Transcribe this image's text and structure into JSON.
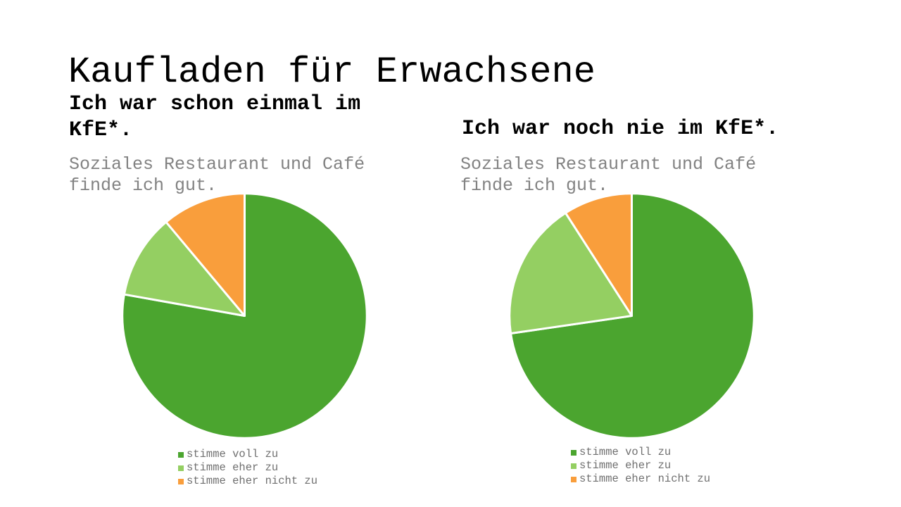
{
  "slide": {
    "title": "Kaufladen für Erwachsene",
    "background_color": "#ffffff"
  },
  "chart_data": [
    {
      "type": "pie",
      "title": "Ich war schon einmal im KfE*.",
      "subtitle": "Soziales Restaurant und Café finde ich gut.",
      "labels": [
        "stimme voll zu",
        "stimme eher zu",
        "stimme eher nicht zu"
      ],
      "values_percent": [
        77.8,
        11.1,
        11.1
      ],
      "colors": [
        "#4ba52f",
        "#94cf62",
        "#f99e3c"
      ],
      "start_angle_deg": 0,
      "direction": "clockwise",
      "slice_border_color": "#ffffff",
      "legend_position": "bottom"
    },
    {
      "type": "pie",
      "title": "Ich war noch nie im KfE*.",
      "subtitle": "Soziales Restaurant und Café finde ich gut.",
      "labels": [
        "stimme voll zu",
        "stimme eher zu",
        "stimme eher nicht zu"
      ],
      "values_percent": [
        72.7,
        18.2,
        9.1
      ],
      "colors": [
        "#4ba52f",
        "#94cf62",
        "#f99e3c"
      ],
      "start_angle_deg": 0,
      "direction": "clockwise",
      "slice_border_color": "#ffffff",
      "legend_position": "bottom"
    }
  ]
}
